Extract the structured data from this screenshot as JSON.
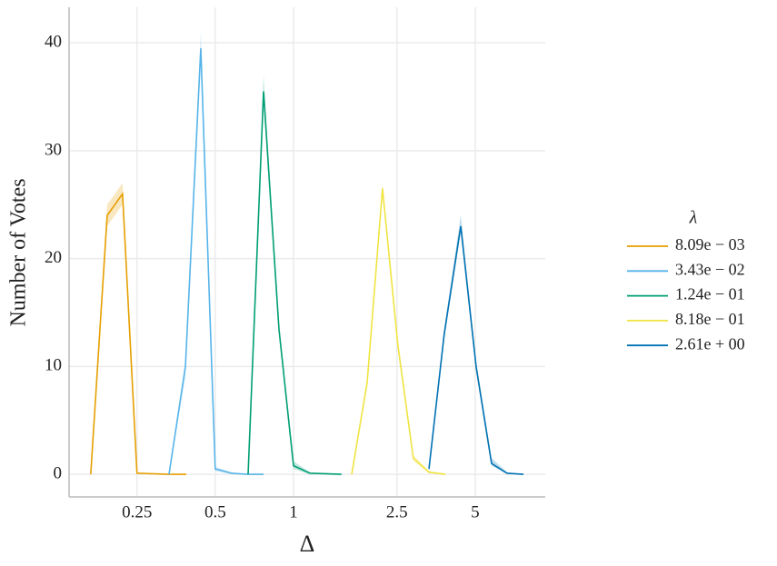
{
  "chart_data": {
    "type": "line",
    "xlabel": "Δ",
    "ylabel": "Number of Votes",
    "xscale": "log",
    "xlim": [
      0.137,
      9.3
    ],
    "xticks": [
      0.25,
      0.5,
      1,
      2.5,
      5
    ],
    "ylim": [
      -2.1,
      43.3
    ],
    "yticks": [
      0,
      10,
      20,
      30,
      40
    ],
    "grid": true,
    "legend_title": "λ",
    "legend_position": "right",
    "series": [
      {
        "name": "8.09e − 03",
        "color": "#E69F00",
        "x": [
          0.166,
          0.192,
          0.22,
          0.25,
          0.332,
          0.387
        ],
        "values": [
          0,
          24,
          26,
          0.1,
          0,
          0
        ],
        "lower": [
          0,
          23,
          25,
          0.05,
          0,
          0
        ],
        "upper": [
          0,
          25,
          27,
          0.2,
          0,
          0
        ]
      },
      {
        "name": "3.43e − 02",
        "color": "#56B4E9",
        "x": [
          0.332,
          0.384,
          0.44,
          0.5,
          0.578,
          0.664,
          0.767
        ],
        "values": [
          0,
          10,
          39.5,
          0.5,
          0.1,
          0,
          0
        ],
        "lower": [
          0,
          9,
          38.5,
          0.3,
          0,
          0,
          0
        ],
        "upper": [
          0,
          10.5,
          41,
          0.7,
          0.2,
          0,
          0
        ]
      },
      {
        "name": "1.24e − 01",
        "color": "#009E73",
        "x": [
          0.669,
          0.767,
          0.879,
          1.0,
          1.156,
          1.325,
          1.53
        ],
        "values": [
          0,
          35.5,
          13.5,
          0.8,
          0.1,
          0.05,
          0
        ],
        "lower": [
          0,
          35,
          13,
          0.5,
          0,
          0,
          0
        ],
        "upper": [
          0,
          37,
          14,
          1.2,
          0.2,
          0.1,
          0
        ]
      },
      {
        "name": "8.18e − 01",
        "color": "#F0E442",
        "x": [
          1.675,
          1.92,
          2.2,
          2.52,
          2.89,
          3.32,
          3.84
        ],
        "values": [
          0,
          8.5,
          26.5,
          12,
          1.5,
          0.2,
          0
        ],
        "lower": [
          0,
          8,
          26,
          11.5,
          1.2,
          0.1,
          0
        ],
        "upper": [
          0,
          9,
          27,
          12.5,
          1.8,
          0.3,
          0
        ]
      },
      {
        "name": "2.61e + 00",
        "color": "#0072B2",
        "x": [
          3.32,
          3.8,
          4.4,
          5.04,
          5.78,
          6.63,
          7.67
        ],
        "values": [
          0.5,
          13,
          23,
          10,
          1,
          0.1,
          0
        ],
        "lower": [
          0.3,
          12.5,
          22.5,
          9.5,
          0.8,
          0,
          0
        ],
        "upper": [
          0.7,
          13.5,
          24,
          10.5,
          1.5,
          0.2,
          0
        ]
      }
    ]
  }
}
